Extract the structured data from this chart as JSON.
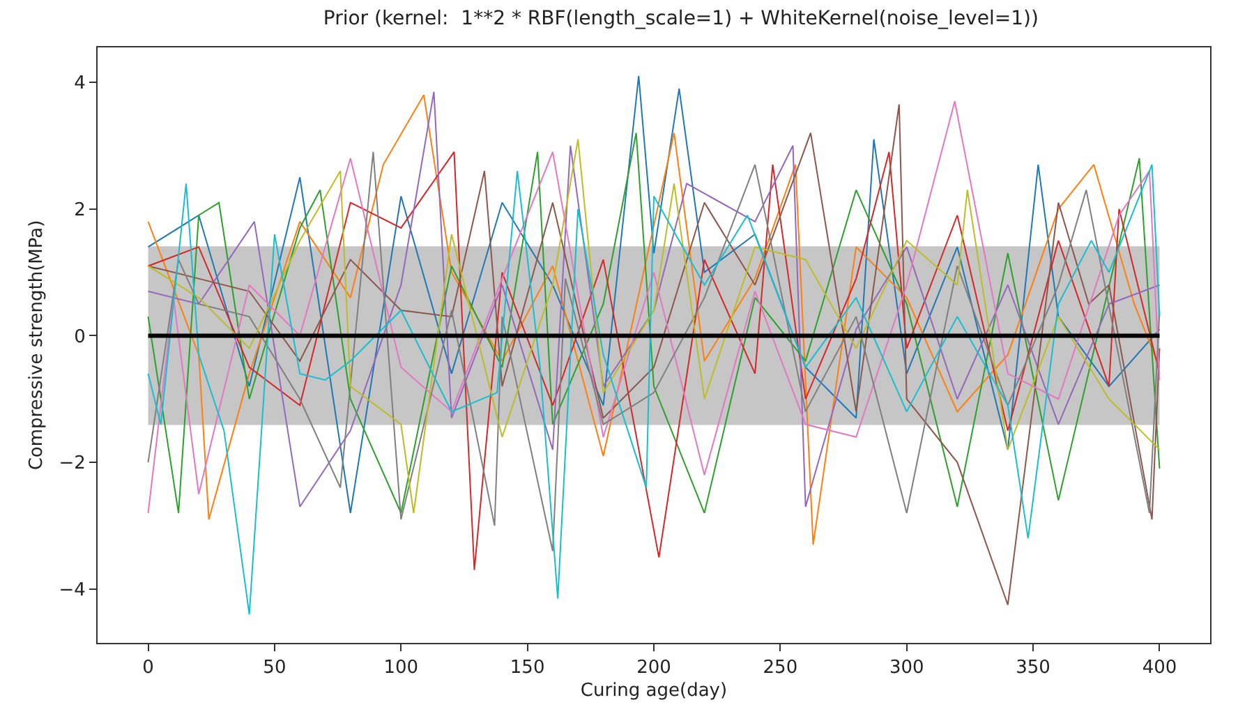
{
  "chart_data": {
    "type": "line",
    "title": "Prior (kernel:  1**2 * RBF(length_scale=1) + WhiteKernel(noise_level=1))",
    "xlabel": "Curing age(day)",
    "ylabel": "Compressive strength(MPa)",
    "xlim": [
      -20,
      420
    ],
    "ylim": [
      -4.85,
      4.55
    ],
    "xticks": [
      0,
      50,
      100,
      150,
      200,
      250,
      300,
      350,
      400
    ],
    "yticks": [
      -4,
      -2,
      0,
      2,
      4
    ],
    "grid": false,
    "bands": [
      {
        "axis": "y",
        "from": -1.41,
        "to": 1.41,
        "color": "#808080"
      }
    ],
    "series": [
      {
        "color": "#1f77b4",
        "x": [
          0,
          20,
          40,
          60,
          80,
          100,
          120,
          140,
          160,
          180,
          194,
          200,
          210,
          220,
          240,
          260,
          280,
          287,
          300,
          320,
          340,
          352,
          360,
          380,
          400
        ],
        "values": [
          1.4,
          1.9,
          -0.8,
          2.5,
          -2.8,
          2.2,
          -0.6,
          2.1,
          0.8,
          -1.1,
          4.1,
          1.3,
          3.9,
          1.0,
          1.6,
          -0.5,
          -1.3,
          3.1,
          -0.6,
          1.4,
          -1.8,
          2.7,
          0.3,
          -0.8,
          0.1
        ]
      },
      {
        "color": "#ff7f0e",
        "x": [
          0,
          20,
          24,
          40,
          60,
          80,
          93,
          109,
          120,
          140,
          160,
          180,
          208,
          220,
          240,
          256,
          263,
          280,
          300,
          320,
          340,
          360,
          374,
          390,
          400
        ],
        "values": [
          1.8,
          -0.3,
          -2.9,
          -0.6,
          1.8,
          0.6,
          2.7,
          3.8,
          1.0,
          -0.4,
          1.1,
          -1.9,
          3.2,
          -0.4,
          0.9,
          2.7,
          -3.3,
          1.4,
          0.6,
          -1.2,
          -0.3,
          2.0,
          2.7,
          0.5,
          -0.5
        ]
      },
      {
        "color": "#2ca02c",
        "x": [
          0,
          12,
          20,
          28,
          40,
          60,
          68,
          80,
          100,
          120,
          140,
          154,
          160,
          180,
          193,
          200,
          220,
          240,
          260,
          280,
          300,
          320,
          340,
          360,
          392,
          400
        ],
        "values": [
          0.3,
          -2.8,
          1.9,
          2.1,
          -1.0,
          1.7,
          2.3,
          -1.0,
          -2.8,
          1.1,
          -0.5,
          2.9,
          -1.4,
          0.5,
          3.2,
          -0.8,
          -2.8,
          0.6,
          -0.4,
          2.3,
          0.5,
          -2.7,
          1.3,
          -2.6,
          2.8,
          -2.1
        ]
      },
      {
        "color": "#d62728",
        "x": [
          0,
          20,
          40,
          60,
          80,
          100,
          121,
          129,
          140,
          160,
          180,
          202,
          220,
          240,
          247,
          260,
          280,
          293,
          300,
          320,
          340,
          360,
          380,
          384,
          400
        ],
        "values": [
          1.1,
          1.4,
          -0.5,
          -1.1,
          2.1,
          1.7,
          2.9,
          -3.7,
          1.0,
          -1.1,
          1.2,
          -3.5,
          1.2,
          -0.6,
          2.7,
          -1.0,
          0.9,
          2.9,
          -0.2,
          1.9,
          -1.5,
          1.5,
          -0.8,
          2.0,
          -0.6
        ]
      },
      {
        "color": "#9467bd",
        "x": [
          0,
          20,
          42,
          60,
          80,
          100,
          113,
          120,
          140,
          160,
          167,
          180,
          200,
          213,
          240,
          255,
          260,
          280,
          300,
          320,
          340,
          360,
          380,
          400
        ],
        "values": [
          0.7,
          0.5,
          1.8,
          -2.7,
          -1.5,
          0.8,
          3.85,
          -1.3,
          0.8,
          -1.8,
          3.0,
          -0.8,
          0.4,
          2.4,
          1.8,
          3.0,
          -2.7,
          0.1,
          1.4,
          -1.0,
          0.8,
          -1.4,
          0.5,
          0.8
        ]
      },
      {
        "color": "#8c564b",
        "x": [
          0,
          20,
          40,
          60,
          80,
          100,
          120,
          133,
          140,
          160,
          180,
          200,
          220,
          240,
          262,
          280,
          297,
          300,
          320,
          340,
          360,
          372,
          380,
          397,
          400
        ],
        "values": [
          1.1,
          0.9,
          0.7,
          -0.4,
          1.2,
          0.4,
          0.3,
          2.6,
          -0.8,
          2.1,
          -1.3,
          -0.5,
          2.1,
          0.8,
          3.2,
          -1.2,
          3.65,
          -1.0,
          -2.0,
          -4.25,
          2.1,
          0.5,
          0.8,
          -2.9,
          -0.2
        ]
      },
      {
        "color": "#e377c2",
        "x": [
          0,
          10,
          20,
          40,
          60,
          80,
          100,
          120,
          140,
          160,
          180,
          200,
          220,
          240,
          260,
          280,
          300,
          319,
          340,
          360,
          384,
          396,
          400
        ],
        "values": [
          -2.8,
          0.6,
          -2.5,
          0.8,
          0.0,
          2.8,
          -0.5,
          -1.2,
          0.9,
          2.9,
          -1.6,
          1.0,
          -2.2,
          0.7,
          -1.4,
          -1.6,
          0.8,
          3.7,
          -0.6,
          -1.0,
          1.9,
          2.6,
          -0.7
        ]
      },
      {
        "color": "#7f7f7f",
        "x": [
          0,
          12,
          20,
          40,
          60,
          76,
          89,
          100,
          120,
          137,
          140,
          160,
          165,
          180,
          200,
          220,
          240,
          260,
          280,
          300,
          320,
          340,
          360,
          371,
          396,
          400
        ],
        "values": [
          -2.0,
          1.2,
          0.5,
          0.3,
          -1.0,
          -2.4,
          2.9,
          -2.9,
          0.4,
          -3.0,
          0.3,
          -3.4,
          0.9,
          -1.4,
          -0.9,
          0.6,
          2.7,
          -1.2,
          0.3,
          -2.8,
          1.1,
          -1.1,
          0.8,
          2.3,
          -2.8,
          0.4
        ]
      },
      {
        "color": "#bcbd22",
        "x": [
          0,
          20,
          40,
          60,
          76,
          80,
          100,
          105,
          120,
          140,
          160,
          170,
          180,
          200,
          208,
          220,
          240,
          260,
          280,
          300,
          320,
          324,
          340,
          360,
          380,
          400
        ],
        "values": [
          1.1,
          0.6,
          -0.2,
          1.5,
          2.6,
          -0.8,
          -1.4,
          -2.8,
          1.6,
          -1.6,
          0.8,
          3.1,
          -0.9,
          0.4,
          2.4,
          -1.0,
          1.4,
          1.2,
          -0.2,
          1.5,
          0.8,
          2.3,
          -1.8,
          0.3,
          -1.0,
          -1.8
        ]
      },
      {
        "color": "#17becf",
        "x": [
          0,
          5,
          15,
          20,
          30,
          40,
          50,
          60,
          70,
          80,
          100,
          120,
          138,
          146,
          155,
          162,
          170,
          180,
          197,
          200,
          220,
          237,
          260,
          280,
          300,
          320,
          340,
          348,
          360,
          373,
          380,
          397,
          400
        ],
        "values": [
          -0.6,
          -1.4,
          2.4,
          -0.3,
          -1.5,
          -4.4,
          1.6,
          -0.6,
          -0.7,
          -0.4,
          0.4,
          -1.2,
          -0.9,
          2.6,
          -0.5,
          -4.15,
          2.0,
          -0.3,
          -2.4,
          2.2,
          0.8,
          1.9,
          -0.5,
          0.6,
          -1.2,
          0.3,
          -1.1,
          -3.2,
          0.5,
          1.5,
          1.0,
          2.7,
          0.3
        ]
      },
      {
        "color": "#000000",
        "x": [
          0,
          400
        ],
        "values": [
          0,
          0
        ]
      }
    ]
  }
}
